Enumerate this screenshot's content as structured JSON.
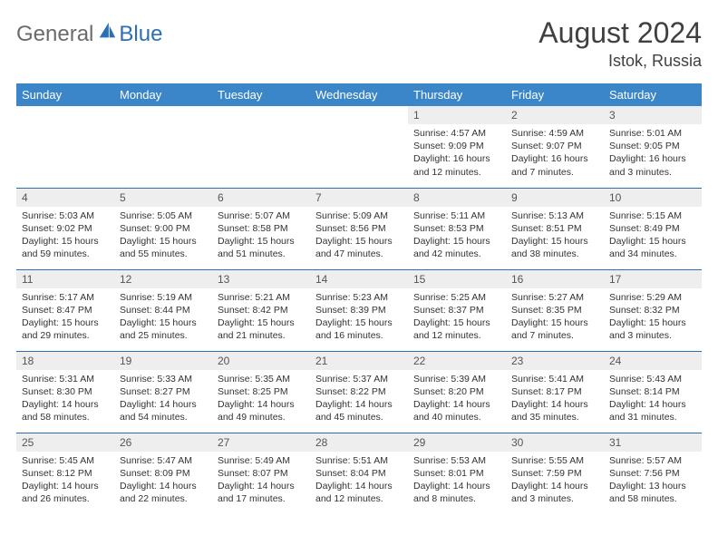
{
  "logo": {
    "part1": "General",
    "part2": "Blue"
  },
  "title": "August 2024",
  "location": "Istok, Russia",
  "colors": {
    "header_bg": "#3a86c8",
    "header_text": "#ffffff",
    "daynum_bg": "#eeeeee",
    "border": "#2b6fb5",
    "logo_gray": "#6b6b6b",
    "logo_blue": "#2b6fb5"
  },
  "weekdays": [
    "Sunday",
    "Monday",
    "Tuesday",
    "Wednesday",
    "Thursday",
    "Friday",
    "Saturday"
  ],
  "weeks": [
    [
      null,
      null,
      null,
      null,
      {
        "n": "1",
        "sr": "Sunrise: 4:57 AM",
        "ss": "Sunset: 9:09 PM",
        "dl": "Daylight: 16 hours and 12 minutes."
      },
      {
        "n": "2",
        "sr": "Sunrise: 4:59 AM",
        "ss": "Sunset: 9:07 PM",
        "dl": "Daylight: 16 hours and 7 minutes."
      },
      {
        "n": "3",
        "sr": "Sunrise: 5:01 AM",
        "ss": "Sunset: 9:05 PM",
        "dl": "Daylight: 16 hours and 3 minutes."
      }
    ],
    [
      {
        "n": "4",
        "sr": "Sunrise: 5:03 AM",
        "ss": "Sunset: 9:02 PM",
        "dl": "Daylight: 15 hours and 59 minutes."
      },
      {
        "n": "5",
        "sr": "Sunrise: 5:05 AM",
        "ss": "Sunset: 9:00 PM",
        "dl": "Daylight: 15 hours and 55 minutes."
      },
      {
        "n": "6",
        "sr": "Sunrise: 5:07 AM",
        "ss": "Sunset: 8:58 PM",
        "dl": "Daylight: 15 hours and 51 minutes."
      },
      {
        "n": "7",
        "sr": "Sunrise: 5:09 AM",
        "ss": "Sunset: 8:56 PM",
        "dl": "Daylight: 15 hours and 47 minutes."
      },
      {
        "n": "8",
        "sr": "Sunrise: 5:11 AM",
        "ss": "Sunset: 8:53 PM",
        "dl": "Daylight: 15 hours and 42 minutes."
      },
      {
        "n": "9",
        "sr": "Sunrise: 5:13 AM",
        "ss": "Sunset: 8:51 PM",
        "dl": "Daylight: 15 hours and 38 minutes."
      },
      {
        "n": "10",
        "sr": "Sunrise: 5:15 AM",
        "ss": "Sunset: 8:49 PM",
        "dl": "Daylight: 15 hours and 34 minutes."
      }
    ],
    [
      {
        "n": "11",
        "sr": "Sunrise: 5:17 AM",
        "ss": "Sunset: 8:47 PM",
        "dl": "Daylight: 15 hours and 29 minutes."
      },
      {
        "n": "12",
        "sr": "Sunrise: 5:19 AM",
        "ss": "Sunset: 8:44 PM",
        "dl": "Daylight: 15 hours and 25 minutes."
      },
      {
        "n": "13",
        "sr": "Sunrise: 5:21 AM",
        "ss": "Sunset: 8:42 PM",
        "dl": "Daylight: 15 hours and 21 minutes."
      },
      {
        "n": "14",
        "sr": "Sunrise: 5:23 AM",
        "ss": "Sunset: 8:39 PM",
        "dl": "Daylight: 15 hours and 16 minutes."
      },
      {
        "n": "15",
        "sr": "Sunrise: 5:25 AM",
        "ss": "Sunset: 8:37 PM",
        "dl": "Daylight: 15 hours and 12 minutes."
      },
      {
        "n": "16",
        "sr": "Sunrise: 5:27 AM",
        "ss": "Sunset: 8:35 PM",
        "dl": "Daylight: 15 hours and 7 minutes."
      },
      {
        "n": "17",
        "sr": "Sunrise: 5:29 AM",
        "ss": "Sunset: 8:32 PM",
        "dl": "Daylight: 15 hours and 3 minutes."
      }
    ],
    [
      {
        "n": "18",
        "sr": "Sunrise: 5:31 AM",
        "ss": "Sunset: 8:30 PM",
        "dl": "Daylight: 14 hours and 58 minutes."
      },
      {
        "n": "19",
        "sr": "Sunrise: 5:33 AM",
        "ss": "Sunset: 8:27 PM",
        "dl": "Daylight: 14 hours and 54 minutes."
      },
      {
        "n": "20",
        "sr": "Sunrise: 5:35 AM",
        "ss": "Sunset: 8:25 PM",
        "dl": "Daylight: 14 hours and 49 minutes."
      },
      {
        "n": "21",
        "sr": "Sunrise: 5:37 AM",
        "ss": "Sunset: 8:22 PM",
        "dl": "Daylight: 14 hours and 45 minutes."
      },
      {
        "n": "22",
        "sr": "Sunrise: 5:39 AM",
        "ss": "Sunset: 8:20 PM",
        "dl": "Daylight: 14 hours and 40 minutes."
      },
      {
        "n": "23",
        "sr": "Sunrise: 5:41 AM",
        "ss": "Sunset: 8:17 PM",
        "dl": "Daylight: 14 hours and 35 minutes."
      },
      {
        "n": "24",
        "sr": "Sunrise: 5:43 AM",
        "ss": "Sunset: 8:14 PM",
        "dl": "Daylight: 14 hours and 31 minutes."
      }
    ],
    [
      {
        "n": "25",
        "sr": "Sunrise: 5:45 AM",
        "ss": "Sunset: 8:12 PM",
        "dl": "Daylight: 14 hours and 26 minutes."
      },
      {
        "n": "26",
        "sr": "Sunrise: 5:47 AM",
        "ss": "Sunset: 8:09 PM",
        "dl": "Daylight: 14 hours and 22 minutes."
      },
      {
        "n": "27",
        "sr": "Sunrise: 5:49 AM",
        "ss": "Sunset: 8:07 PM",
        "dl": "Daylight: 14 hours and 17 minutes."
      },
      {
        "n": "28",
        "sr": "Sunrise: 5:51 AM",
        "ss": "Sunset: 8:04 PM",
        "dl": "Daylight: 14 hours and 12 minutes."
      },
      {
        "n": "29",
        "sr": "Sunrise: 5:53 AM",
        "ss": "Sunset: 8:01 PM",
        "dl": "Daylight: 14 hours and 8 minutes."
      },
      {
        "n": "30",
        "sr": "Sunrise: 5:55 AM",
        "ss": "Sunset: 7:59 PM",
        "dl": "Daylight: 14 hours and 3 minutes."
      },
      {
        "n": "31",
        "sr": "Sunrise: 5:57 AM",
        "ss": "Sunset: 7:56 PM",
        "dl": "Daylight: 13 hours and 58 minutes."
      }
    ]
  ]
}
